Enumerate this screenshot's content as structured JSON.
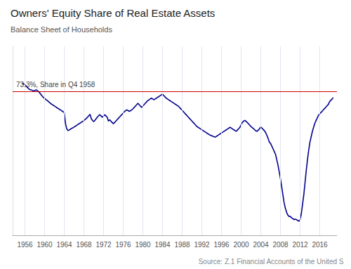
{
  "chart_data": {
    "type": "line",
    "title": "Owners' Equity Share of Real Estate Assets",
    "subtitle": "Balance Sheet of Households",
    "source": "Source: Z.1 Financial Accounts of the United S",
    "ref_line": {
      "value": 73.3,
      "color": "#CC0000",
      "label": "73.3%, Share in Q4 1958"
    },
    "color": "#00008B",
    "grid": true,
    "tick_labels": "x",
    "xlim": [
      1953.5,
      2019.5
    ],
    "ylim": [
      20,
      90
    ],
    "xticks": [
      1956,
      1960,
      1964,
      1968,
      1972,
      1976,
      1980,
      1984,
      1988,
      1992,
      1996,
      2000,
      2004,
      2008,
      2012,
      2016
    ],
    "x": [
      1955.5,
      1955.75,
      1956,
      1956.25,
      1956.5,
      1956.75,
      1957,
      1957.25,
      1957.5,
      1957.75,
      1958,
      1958.25,
      1958.5,
      1958.75,
      1959,
      1959.25,
      1959.5,
      1959.75,
      1960,
      1960.25,
      1960.5,
      1960.75,
      1961,
      1961.25,
      1961.5,
      1961.75,
      1962,
      1962.25,
      1962.5,
      1962.75,
      1963,
      1963.25,
      1963.5,
      1963.75,
      1964,
      1964.25,
      1964.5,
      1964.75,
      1965,
      1965.25,
      1965.5,
      1965.75,
      1966,
      1966.25,
      1966.5,
      1966.75,
      1967,
      1967.25,
      1967.5,
      1967.75,
      1968,
      1968.25,
      1968.5,
      1968.75,
      1969,
      1969.25,
      1969.5,
      1969.75,
      1970,
      1970.25,
      1970.5,
      1970.75,
      1971,
      1971.25,
      1971.5,
      1971.75,
      1972,
      1972.25,
      1972.5,
      1972.75,
      1973,
      1973.25,
      1973.5,
      1973.75,
      1974,
      1974.25,
      1974.5,
      1974.75,
      1975,
      1975.25,
      1975.5,
      1975.75,
      1976,
      1976.25,
      1976.5,
      1976.75,
      1977,
      1977.25,
      1977.5,
      1977.75,
      1978,
      1978.25,
      1978.5,
      1978.75,
      1979,
      1979.25,
      1979.5,
      1979.75,
      1980,
      1980.25,
      1980.5,
      1980.75,
      1981,
      1981.25,
      1981.5,
      1981.75,
      1982,
      1982.25,
      1982.5,
      1982.75,
      1983,
      1983.25,
      1983.5,
      1983.75,
      1984,
      1984.25,
      1984.5,
      1984.75,
      1985,
      1985.25,
      1985.5,
      1985.75,
      1986,
      1986.25,
      1986.5,
      1986.75,
      1987,
      1987.25,
      1987.5,
      1987.75,
      1988,
      1988.25,
      1988.5,
      1988.75,
      1989,
      1989.25,
      1989.5,
      1989.75,
      1990,
      1990.25,
      1990.5,
      1990.75,
      1991,
      1991.25,
      1991.5,
      1991.75,
      1992,
      1992.25,
      1992.5,
      1992.75,
      1993,
      1993.25,
      1993.5,
      1993.75,
      1994,
      1994.25,
      1994.5,
      1994.75,
      1995,
      1995.25,
      1995.5,
      1995.75,
      1996,
      1996.25,
      1996.5,
      1996.75,
      1997,
      1997.25,
      1997.5,
      1997.75,
      1998,
      1998.25,
      1998.5,
      1998.75,
      1999,
      1999.25,
      1999.5,
      1999.75,
      2000,
      2000.25,
      2000.5,
      2000.75,
      2001,
      2001.25,
      2001.5,
      2001.75,
      2002,
      2002.25,
      2002.5,
      2002.75,
      2003,
      2003.25,
      2003.5,
      2003.75,
      2004,
      2004.25,
      2004.5,
      2004.75,
      2005,
      2005.25,
      2005.5,
      2005.75,
      2006,
      2006.25,
      2006.5,
      2006.75,
      2007,
      2007.25,
      2007.5,
      2007.75,
      2008,
      2008.25,
      2008.5,
      2008.75,
      2009,
      2009.25,
      2009.5,
      2009.75,
      2010,
      2010.25,
      2010.5,
      2010.75,
      2011,
      2011.25,
      2011.5,
      2011.75,
      2012,
      2012.25,
      2012.5,
      2012.75,
      2013,
      2013.25,
      2013.5,
      2013.75,
      2014,
      2014.25,
      2014.5,
      2014.75,
      2015,
      2015.25,
      2015.5,
      2015.75,
      2016,
      2016.25,
      2016.5,
      2016.75,
      2017,
      2017.25,
      2017.5,
      2017.75,
      2018,
      2018.25,
      2018.5,
      2018.75
    ],
    "values": [
      76.5,
      76.0,
      75.8,
      75.2,
      74.8,
      74.3,
      74.0,
      73.9,
      73.7,
      73.5,
      73.6,
      73.9,
      73.6,
      73.3,
      72.8,
      72.2,
      71.6,
      71.1,
      70.7,
      70.3,
      70.0,
      69.6,
      69.2,
      68.8,
      68.5,
      68.2,
      67.9,
      67.6,
      67.3,
      67.0,
      66.7,
      66.4,
      66.1,
      65.8,
      65.5,
      61.5,
      59.5,
      58.8,
      59.0,
      59.3,
      59.6,
      59.8,
      60.1,
      60.4,
      60.7,
      61.0,
      61.3,
      61.6,
      61.9,
      62.2,
      62.5,
      62.9,
      63.3,
      63.8,
      64.3,
      64.8,
      63.2,
      62.6,
      62.1,
      62.6,
      63.2,
      63.8,
      64.3,
      64.7,
      64.2,
      63.7,
      64.2,
      64.7,
      64.2,
      63.7,
      62.3,
      62.8,
      62.3,
      61.8,
      61.3,
      61.8,
      62.3,
      62.8,
      63.3,
      63.8,
      64.3,
      64.8,
      65.3,
      65.8,
      66.2,
      66.5,
      66.2,
      65.9,
      66.2,
      66.5,
      66.9,
      67.4,
      67.9,
      68.4,
      68.9,
      68.4,
      67.9,
      67.4,
      67.9,
      68.4,
      68.9,
      69.4,
      69.9,
      70.2,
      70.5,
      70.8,
      70.5,
      70.2,
      70.5,
      70.8,
      71.1,
      71.4,
      71.7,
      72.0,
      72.3,
      71.8,
      71.3,
      70.8,
      70.5,
      70.2,
      69.9,
      69.6,
      69.3,
      69.0,
      68.7,
      68.4,
      68.1,
      67.8,
      67.3,
      66.8,
      66.3,
      65.8,
      65.3,
      64.8,
      64.3,
      63.8,
      63.3,
      62.8,
      62.3,
      61.8,
      61.3,
      60.8,
      60.3,
      60.0,
      59.7,
      59.4,
      59.1,
      58.8,
      58.5,
      58.2,
      57.9,
      57.6,
      57.3,
      57.1,
      56.9,
      56.7,
      56.5,
      56.4,
      56.7,
      57.0,
      57.3,
      57.6,
      57.9,
      58.2,
      58.5,
      58.8,
      59.1,
      59.4,
      59.7,
      60.0,
      59.7,
      59.4,
      59.1,
      58.8,
      58.5,
      59.0,
      59.5,
      60.0,
      61.0,
      61.8,
      62.3,
      62.6,
      62.2,
      61.8,
      61.3,
      60.8,
      60.3,
      59.9,
      59.5,
      59.1,
      58.7,
      58.5,
      59.0,
      59.5,
      60.2,
      59.7,
      59.2,
      58.7,
      58.0,
      57.0,
      55.8,
      54.5,
      54.0,
      53.0,
      52.0,
      51.0,
      50.0,
      48.0,
      46.0,
      43.5,
      41.0,
      38.0,
      35.0,
      32.0,
      30.0,
      28.5,
      27.5,
      27.0,
      27.0,
      26.5,
      26.2,
      25.8,
      26.0,
      25.8,
      25.5,
      25.2,
      25.8,
      28.0,
      31.5,
      35.0,
      39.5,
      44.0,
      48.0,
      51.5,
      54.5,
      56.5,
      58.5,
      60.0,
      61.5,
      62.5,
      63.5,
      64.5,
      65.0,
      65.5,
      66.0,
      66.5,
      67.0,
      67.5,
      68.0,
      68.5,
      69.5,
      70.0,
      70.5,
      71.0
    ]
  }
}
